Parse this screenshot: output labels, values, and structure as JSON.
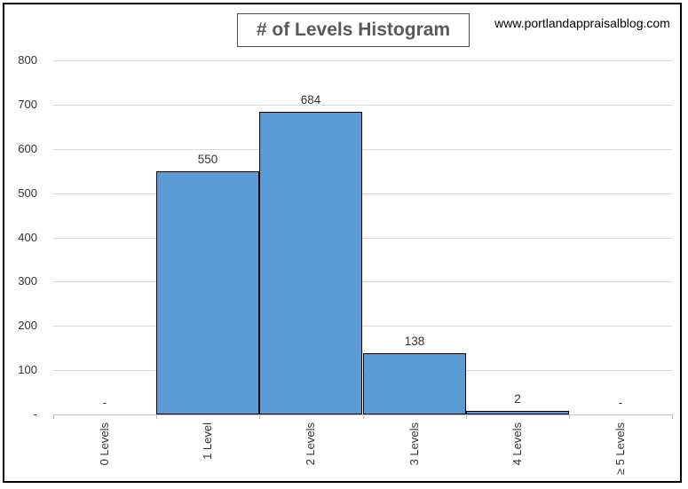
{
  "chart": {
    "title": "# of Levels Histogram",
    "source_url": "www.portlandappraisalblog.com"
  },
  "chart_data": {
    "type": "bar",
    "title": "# of Levels Histogram",
    "subtitle": "",
    "xlabel": "",
    "ylabel": "",
    "categories": [
      "0 Levels",
      "1 Level",
      "2 Levels",
      "3 Levels",
      "4 Levels",
      "≥ 5 Levels"
    ],
    "values": [
      0,
      550,
      684,
      138,
      2,
      0
    ],
    "value_labels": [
      "-",
      "550",
      "684",
      "138",
      "2",
      "-"
    ],
    "ylim": [
      0,
      800
    ],
    "y_tick_step": 100,
    "y_tick_labels": [
      "-",
      "100",
      "200",
      "300",
      "400",
      "500",
      "600",
      "700",
      "800"
    ],
    "grid": true,
    "legend_position": "none",
    "annotations": [
      "www.portlandappraisalblog.com"
    ],
    "colors": {
      "bar_fill": "#5B9BD5",
      "bar_border": "#000000",
      "gridline": "#D9D9D9",
      "axis_line": "#BFBFBF",
      "label_text": "#333333",
      "title_text": "#595959"
    }
  }
}
